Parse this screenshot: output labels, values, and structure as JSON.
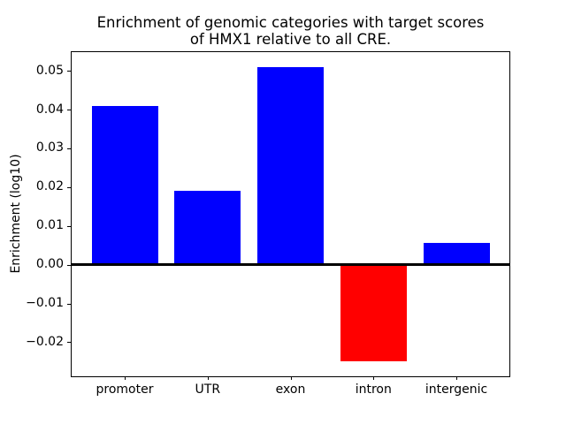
{
  "title": {
    "line1": "Enrichment of genomic categories with target scores",
    "line2": "of HMX1 relative to all CRE."
  },
  "colors": {
    "positive_bar": "#0000ff",
    "negative_bar": "#ff0000",
    "axis": "#000000",
    "background": "#ffffff",
    "text": "#000000"
  },
  "chart_data": {
    "type": "bar",
    "title": "Enrichment of genomic categories with target scores\nof HMX1 relative to all CRE.",
    "xlabel": "",
    "ylabel": "Enrichment (log10)",
    "categories": [
      "promoter",
      "UTR",
      "exon",
      "intron",
      "intergenic"
    ],
    "values": [
      0.041,
      0.019,
      0.051,
      -0.025,
      0.0055
    ],
    "bar_colors": [
      "#0000ff",
      "#0000ff",
      "#0000ff",
      "#ff0000",
      "#0000ff"
    ],
    "bar_width": 0.8,
    "xlim": [
      -0.64,
      4.64
    ],
    "ylim": [
      -0.0288,
      0.0548
    ],
    "yticks": [
      {
        "value": -0.02,
        "label": "−0.02"
      },
      {
        "value": -0.01,
        "label": "−0.01"
      },
      {
        "value": 0.0,
        "label": "0.00"
      },
      {
        "value": 0.01,
        "label": "0.01"
      },
      {
        "value": 0.02,
        "label": "0.02"
      },
      {
        "value": 0.03,
        "label": "0.03"
      },
      {
        "value": 0.04,
        "label": "0.04"
      },
      {
        "value": 0.05,
        "label": "0.05"
      }
    ],
    "zero_line": {
      "value": 0,
      "color": "#000000",
      "thickness_px": 2.5
    },
    "grid": false,
    "legend": null
  }
}
